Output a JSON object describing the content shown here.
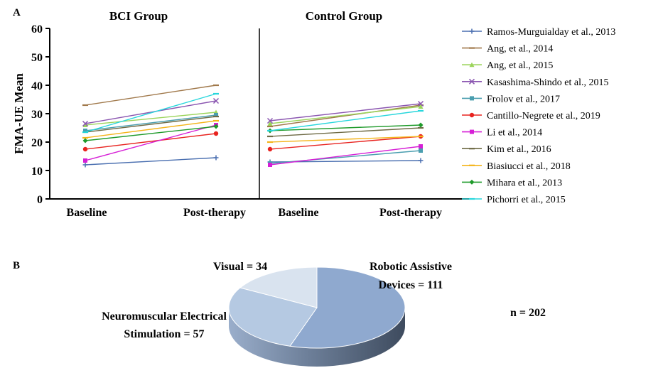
{
  "panel_a_label": "A",
  "panel_b_label": "B",
  "chart_data": [
    {
      "type": "line",
      "panels": [
        {
          "title": "BCI Group",
          "categories": [
            "Baseline",
            "Post-therapy"
          ]
        },
        {
          "title": "Control Group",
          "categories": [
            "Baseline",
            "Post-therapy"
          ]
        }
      ],
      "ylabel": "FMA-UE Mean",
      "ylim": [
        0,
        60
      ],
      "yticks": [
        "0",
        "10",
        "20",
        "30",
        "40",
        "50",
        "60"
      ],
      "grid": false,
      "legend_position": "right",
      "series": [
        {
          "name": "Ramos-Murguialday et al., 2013",
          "color": "#4a6fb0",
          "marker": "plus",
          "bci": [
            12,
            14.5
          ],
          "control": [
            13,
            13.5
          ]
        },
        {
          "name": "Ang, et al., 2014",
          "color": "#a0784a",
          "marker": "dash",
          "bci": [
            33,
            40
          ],
          "control": [
            25.5,
            33
          ]
        },
        {
          "name": "Ang, et al., 2015",
          "color": "#9bd45a",
          "marker": "tri",
          "bci": [
            26,
            30.5
          ],
          "control": [
            26.5,
            32.5
          ]
        },
        {
          "name": "Kasashima-Shindo et al., 2015",
          "color": "#8a55b0",
          "marker": "x",
          "bci": [
            26.5,
            34.5
          ],
          "control": [
            27.5,
            33.5
          ]
        },
        {
          "name": "Frolov et al., 2017",
          "color": "#4a9eaf",
          "marker": "square",
          "bci": [
            24,
            29.5
          ],
          "control": [
            12.5,
            17
          ]
        },
        {
          "name": "Cantillo-Negrete et al., 2019",
          "color": "#e8231f",
          "marker": "dot",
          "bci": [
            17.5,
            23
          ],
          "control": [
            17.5,
            22
          ]
        },
        {
          "name": "Li et al., 2014",
          "color": "#d61fd6",
          "marker": "square",
          "bci": [
            13.5,
            26
          ],
          "control": [
            12,
            18.5
          ]
        },
        {
          "name": "Kim et al., 2016",
          "color": "#6e6a45",
          "marker": "dash",
          "bci": [
            23.5,
            29
          ],
          "control": [
            22,
            25
          ]
        },
        {
          "name": "Biasiucci et al., 2018",
          "color": "#f4b41a",
          "marker": "dash",
          "bci": [
            21.5,
            27.5
          ],
          "control": [
            20,
            22
          ]
        },
        {
          "name": "Mihara et al., 2013",
          "color": "#1e9a2a",
          "marker": "diamond",
          "bci": [
            20.5,
            25.5
          ],
          "control": [
            24,
            26
          ]
        },
        {
          "name": "Pichorri et al., 2015",
          "color": "#27d6dc",
          "marker": "dash",
          "bci": [
            23.5,
            37
          ],
          "control": [
            24,
            31
          ]
        }
      ]
    },
    {
      "type": "pie",
      "style": "3d",
      "labels": [
        "Robotic Assistive Devices",
        "Neuromuscular Electrical Stimulation",
        "Visual"
      ],
      "values": [
        111,
        57,
        34
      ],
      "label_texts": [
        "Robotic Assistive",
        "Devices = 111",
        "Neuromuscular Electrical",
        "Stimulation = 57",
        "Visual = 34"
      ],
      "colors": [
        "#8fa9cf",
        "#b5c9e2",
        "#d9e3ef"
      ],
      "total_label": "n = 202"
    }
  ]
}
